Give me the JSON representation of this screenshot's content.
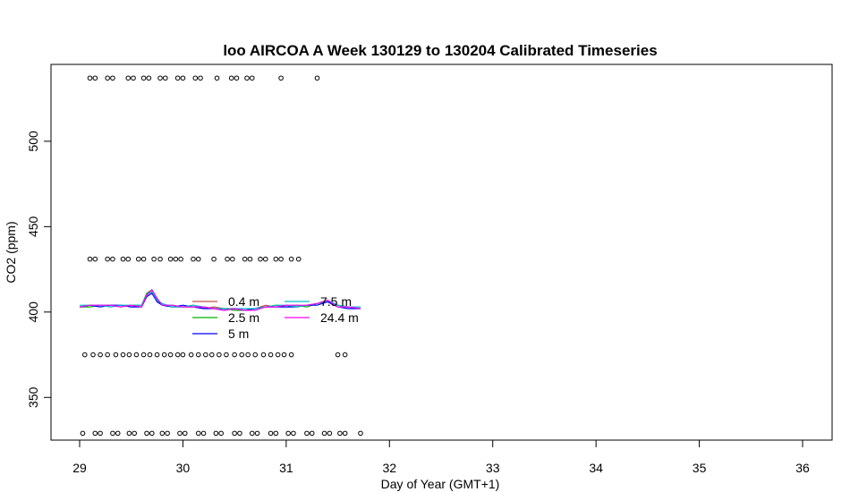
{
  "chart_data": {
    "type": "line",
    "title": "loo AIRCOA A  Week 130129 to 130204  Calibrated Timeseries",
    "xlabel": "Day of Year (GMT+1)",
    "ylabel": "CO2 (ppm)",
    "xlim": [
      29,
      36
    ],
    "ylim": [
      325,
      545
    ],
    "x_ticks": [
      29,
      30,
      31,
      32,
      33,
      34,
      35,
      36
    ],
    "y_ticks": [
      350,
      400,
      450,
      500
    ],
    "grid": false,
    "legend": {
      "placement": "center-left",
      "entries": [
        {
          "label": "0.4 m",
          "color": "#c0504d"
        },
        {
          "label": "2.5 m",
          "color": "#00b000"
        },
        {
          "label": "5 m",
          "color": "#0000ff"
        },
        {
          "label": "7.5 m",
          "color": "#00c0c0"
        },
        {
          "label": "24.4 m",
          "color": "#ff00ff"
        }
      ]
    },
    "series": [
      {
        "name": "0.4 m",
        "color": "#c0504d",
        "x": [
          29.0,
          29.1,
          29.2,
          29.3,
          29.4,
          29.5,
          29.6,
          29.65,
          29.7,
          29.75,
          29.8,
          29.9,
          30.0,
          30.1,
          30.2,
          30.3,
          30.4,
          30.5,
          30.6,
          30.7,
          30.8,
          30.9,
          31.0,
          31.1,
          31.2,
          31.3,
          31.4,
          31.5,
          31.6,
          31.72
        ],
        "y": [
          403,
          404,
          404,
          403,
          404,
          403,
          404,
          410,
          412,
          408,
          404,
          403,
          403,
          404,
          402,
          403,
          402,
          402,
          401,
          402,
          404,
          403,
          404,
          403,
          404,
          405,
          407,
          404,
          403,
          402
        ]
      },
      {
        "name": "2.5 m",
        "color": "#00b000",
        "x": [
          29.0,
          29.1,
          29.2,
          29.3,
          29.4,
          29.5,
          29.6,
          29.65,
          29.7,
          29.75,
          29.8,
          29.9,
          30.0,
          30.1,
          30.2,
          30.3,
          30.4,
          30.5,
          30.6,
          30.7,
          30.8,
          30.9,
          31.0,
          31.1,
          31.2,
          31.3,
          31.4,
          31.5,
          31.6,
          31.72
        ],
        "y": [
          403,
          403,
          404,
          404,
          403,
          404,
          404,
          411,
          413,
          407,
          404,
          404,
          403,
          403,
          403,
          402,
          402,
          401,
          401,
          402,
          403,
          404,
          403,
          404,
          403,
          405,
          406,
          404,
          403,
          402
        ]
      },
      {
        "name": "5 m",
        "color": "#0000ff",
        "x": [
          29.0,
          29.1,
          29.2,
          29.3,
          29.4,
          29.5,
          29.6,
          29.65,
          29.7,
          29.75,
          29.8,
          29.9,
          30.0,
          30.1,
          30.2,
          30.3,
          30.4,
          30.5,
          30.6,
          30.7,
          30.8,
          30.9,
          31.0,
          31.1,
          31.2,
          31.3,
          31.4,
          31.5,
          31.6,
          31.72
        ],
        "y": [
          403,
          404,
          403,
          404,
          404,
          403,
          403,
          409,
          411,
          406,
          404,
          403,
          404,
          403,
          402,
          402,
          401,
          402,
          401,
          402,
          403,
          403,
          403,
          403,
          404,
          404,
          406,
          403,
          402,
          402
        ]
      },
      {
        "name": "7.5 m",
        "color": "#00c0c0",
        "x": [
          29.0,
          29.1,
          29.2,
          29.3,
          29.4,
          29.5,
          29.6,
          29.65,
          29.7,
          29.75,
          29.8,
          29.9,
          30.0,
          30.1,
          30.2,
          30.3,
          30.4,
          30.5,
          30.6,
          30.7,
          30.8,
          30.9,
          31.0,
          31.1,
          31.2,
          31.3,
          31.4,
          31.5,
          31.6,
          31.72
        ],
        "y": [
          404,
          404,
          404,
          403,
          404,
          404,
          404,
          410,
          412,
          407,
          405,
          403,
          403,
          404,
          403,
          402,
          402,
          402,
          402,
          402,
          403,
          404,
          404,
          403,
          404,
          405,
          407,
          404,
          403,
          403
        ]
      },
      {
        "name": "24.4 m",
        "color": "#ff00ff",
        "x": [
          29.0,
          29.1,
          29.2,
          29.3,
          29.4,
          29.5,
          29.6,
          29.65,
          29.7,
          29.75,
          29.8,
          29.9,
          30.0,
          30.1,
          30.2,
          30.3,
          30.4,
          30.5,
          30.6,
          30.7,
          30.8,
          30.9,
          31.0,
          31.1,
          31.2,
          31.3,
          31.4,
          31.5,
          31.6,
          31.72
        ],
        "y": [
          403,
          404,
          404,
          404,
          403,
          404,
          403,
          410,
          413,
          408,
          404,
          404,
          403,
          403,
          403,
          402,
          401,
          402,
          401,
          401,
          403,
          403,
          404,
          404,
          404,
          405,
          407,
          403,
          403,
          402
        ]
      }
    ],
    "markers": [
      {
        "y": 537,
        "x": [
          29.1,
          29.15,
          29.27,
          29.32,
          29.47,
          29.52,
          29.62,
          29.67,
          29.78,
          29.83,
          29.95,
          30.0,
          30.12,
          30.17,
          30.33,
          30.47,
          30.52,
          30.62,
          30.67,
          30.95,
          31.3
        ]
      },
      {
        "y": 431,
        "x": [
          29.1,
          29.15,
          29.27,
          29.32,
          29.42,
          29.47,
          29.57,
          29.62,
          29.72,
          29.78,
          29.88,
          29.93,
          29.98,
          30.1,
          30.15,
          30.3,
          30.43,
          30.48,
          30.6,
          30.65,
          30.75,
          30.8,
          30.9,
          30.95,
          31.05,
          31.12
        ]
      },
      {
        "y": 375,
        "x": [
          29.05,
          29.13,
          29.2,
          29.27,
          29.35,
          29.42,
          29.48,
          29.55,
          29.62,
          29.68,
          29.75,
          29.82,
          29.88,
          29.95,
          30.0,
          30.08,
          30.15,
          30.22,
          30.28,
          30.35,
          30.42,
          30.5,
          30.57,
          30.63,
          30.7,
          30.78,
          30.85,
          30.92,
          30.98,
          31.05,
          31.5,
          31.57
        ]
      },
      {
        "y": 329,
        "x": [
          29.03,
          29.15,
          29.2,
          29.32,
          29.37,
          29.48,
          29.53,
          29.65,
          29.7,
          29.8,
          29.85,
          29.97,
          30.02,
          30.15,
          30.2,
          30.32,
          30.37,
          30.5,
          30.55,
          30.67,
          30.72,
          30.85,
          30.9,
          31.02,
          31.07,
          31.2,
          31.25,
          31.37,
          31.42,
          31.52,
          31.57,
          31.72
        ]
      }
    ]
  }
}
